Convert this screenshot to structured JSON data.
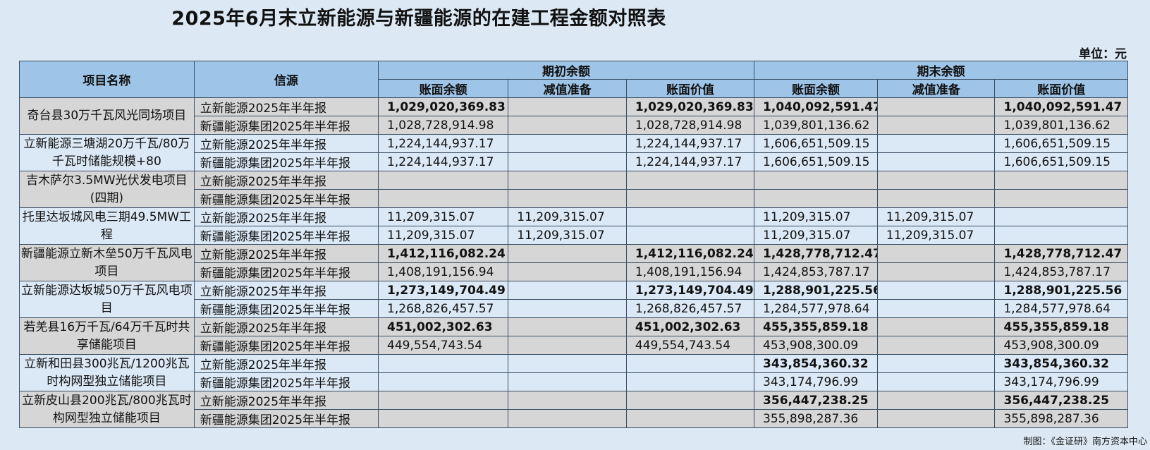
{
  "title": "2025年6月末立新能源与新疆能源的在建工程金额对照表",
  "unit": "单位：元",
  "credit": "制图：《金证研》南方资本中心",
  "headers": {
    "project": "项目名称",
    "source": "信源",
    "opening": "期初余额",
    "closing": "期末余额",
    "book_balance": "账面余额",
    "impairment": "减值准备",
    "book_value": "账面价值"
  },
  "projects": [
    {
      "name": "奇台县30万千瓦风光同场项目",
      "rows": [
        {
          "source": "立新能源2025年半年报",
          "bold": true,
          "values": [
            "1,029,020,369.83",
            "",
            "1,029,020,369.83",
            "1,040,092,591.47",
            "",
            "1,040,092,591.47"
          ]
        },
        {
          "source": "新疆能源集团2025年半年报",
          "bold": false,
          "values": [
            "1,028,728,914.98",
            "",
            "1,028,728,914.98",
            "1,039,801,136.62",
            "",
            "1,039,801,136.62"
          ]
        }
      ]
    },
    {
      "name": "立新能源三塘湖20万千瓦/80万千瓦时储能规模+80",
      "rows": [
        {
          "source": "立新能源2025年半年报",
          "bold": false,
          "values": [
            "1,224,144,937.17",
            "",
            "1,224,144,937.17",
            "1,606,651,509.15",
            "",
            "1,606,651,509.15"
          ]
        },
        {
          "source": "新疆能源集团2025年半年报",
          "bold": false,
          "values": [
            "1,224,144,937.17",
            "",
            "1,224,144,937.17",
            "1,606,651,509.15",
            "",
            "1,606,651,509.15"
          ]
        }
      ]
    },
    {
      "name": "吉木萨尔3.5MW光伏发电项目(四期)",
      "rows": [
        {
          "source": "立新能源2025年半年报",
          "bold": false,
          "values": [
            "",
            "",
            "",
            "",
            "",
            ""
          ]
        },
        {
          "source": "新疆能源集团2025年半年报",
          "bold": false,
          "values": [
            "",
            "",
            "",
            "",
            "",
            ""
          ]
        }
      ]
    },
    {
      "name": "托里达坂城风电三期49.5MW工程",
      "rows": [
        {
          "source": "立新能源2025年半年报",
          "bold": false,
          "values": [
            "11,209,315.07",
            "11,209,315.07",
            "",
            "11,209,315.07",
            "11,209,315.07",
            ""
          ]
        },
        {
          "source": "新疆能源集团2025年半年报",
          "bold": false,
          "values": [
            "11,209,315.07",
            "11,209,315.07",
            "",
            "11,209,315.07",
            "11,209,315.07",
            ""
          ]
        }
      ]
    },
    {
      "name": "新疆能源立新木垒50万千瓦风电项目",
      "rows": [
        {
          "source": "立新能源2025年半年报",
          "bold": true,
          "values": [
            "1,412,116,082.24",
            "",
            "1,412,116,082.24",
            "1,428,778,712.47",
            "",
            "1,428,778,712.47"
          ]
        },
        {
          "source": "新疆能源集团2025年半年报",
          "bold": false,
          "values": [
            "1,408,191,156.94",
            "",
            "1,408,191,156.94",
            "1,424,853,787.17",
            "",
            "1,424,853,787.17"
          ]
        }
      ]
    },
    {
      "name": "立新能源达坂城50万千瓦风电项目",
      "rows": [
        {
          "source": "立新能源2025年半年报",
          "bold": true,
          "values": [
            "1,273,149,704.49",
            "",
            "1,273,149,704.49",
            "1,288,901,225.56",
            "",
            "1,288,901,225.56"
          ]
        },
        {
          "source": "新疆能源集团2025年半年报",
          "bold": false,
          "values": [
            "1,268,826,457.57",
            "",
            "1,268,826,457.57",
            "1,284,577,978.64",
            "",
            "1,284,577,978.64"
          ]
        }
      ]
    },
    {
      "name": "若羌县16万千瓦/64万千瓦时共享储能项目",
      "rows": [
        {
          "source": "立新能源2025年半年报",
          "bold": true,
          "values": [
            "451,002,302.63",
            "",
            "451,002,302.63",
            "455,355,859.18",
            "",
            "455,355,859.18"
          ]
        },
        {
          "source": "新疆能源集团2025年半年报",
          "bold": false,
          "values": [
            "449,554,743.54",
            "",
            "449,554,743.54",
            "453,908,300.09",
            "",
            "453,908,300.09"
          ]
        }
      ]
    },
    {
      "name": "立新和田县300兆瓦/1200兆瓦时构网型独立储能项目",
      "rows": [
        {
          "source": "立新能源2025年半年报",
          "bold": true,
          "values": [
            "",
            "",
            "",
            "343,854,360.32",
            "",
            "343,854,360.32"
          ]
        },
        {
          "source": "新疆能源集团2025年半年报",
          "bold": false,
          "values": [
            "",
            "",
            "",
            "343,174,796.99",
            "",
            "343,174,796.99"
          ]
        }
      ]
    },
    {
      "name": "立新皮山县200兆瓦/800兆瓦时构网型独立储能项目",
      "rows": [
        {
          "source": "立新能源2025年半年报",
          "bold": true,
          "values": [
            "",
            "",
            "",
            "356,447,238.25",
            "",
            "356,447,238.25"
          ]
        },
        {
          "source": "新疆能源集团2025年半年报",
          "bold": false,
          "values": [
            "",
            "",
            "",
            "355,898,287.36",
            "",
            "355,898,287.36"
          ]
        }
      ]
    }
  ]
}
